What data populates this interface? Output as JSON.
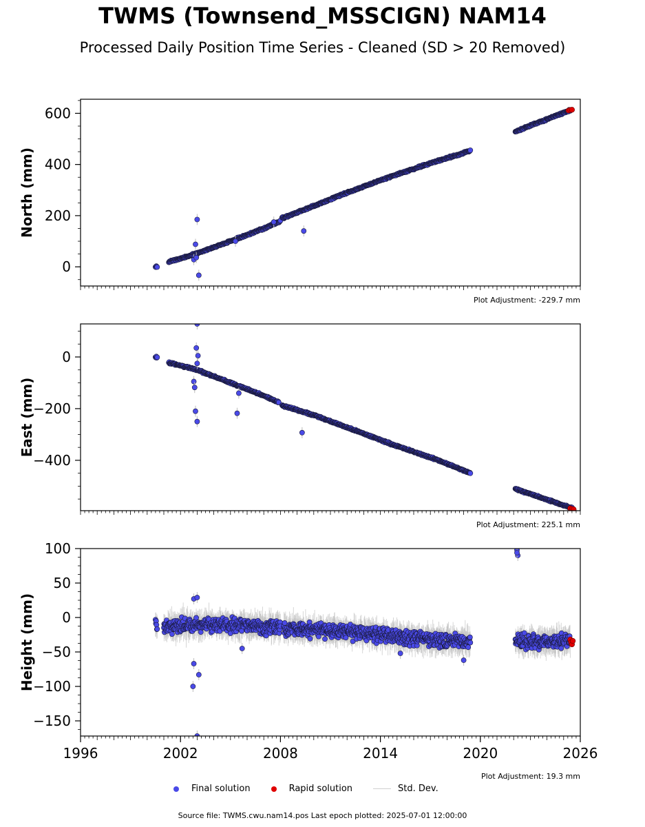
{
  "title": "TWMS (Townsend_MSSCIGN) NAM14",
  "subtitle": "Processed Daily Position Time Series - Cleaned (SD > 20 Removed)",
  "legend": {
    "final": "Final solution",
    "rapid": "Rapid solution",
    "sd": "Std. Dev."
  },
  "footer": "Source file: TWMS.cwu.nam14.pos  Last epoch plotted: 2025-07-01 12:00:00",
  "colors": {
    "final": "#4a4ae8",
    "rapid": "#e00000",
    "sd": "#bbbbbb",
    "edge": "#1a1a3a"
  },
  "chart_data": [
    {
      "type": "scatter",
      "ylabel": "North (mm)",
      "xlim": [
        1996,
        2026
      ],
      "ylim": [
        -75,
        655
      ],
      "yticks": [
        0,
        200,
        400,
        600
      ],
      "adjustment": "Plot Adjustment: -229.7 mm",
      "show_xticklabels": false,
      "series": [
        {
          "name": "Final solution",
          "segments": [
            {
              "x": [
                2000.5,
                2000.6
              ],
              "y": [
                0,
                1
              ]
            },
            {
              "x": [
                2001.3,
                2002.3,
                2003.3,
                2005.0,
                2007.0,
                2008.0
              ],
              "y": [
                20,
                38,
                60,
                100,
                150,
                178
              ]
            },
            {
              "x": [
                2008.1,
                2009.5,
                2012.0,
                2014.5,
                2017.0,
                2019.4
              ],
              "y": [
                190,
                225,
                290,
                350,
                405,
                453
              ]
            },
            {
              "x": [
                2022.1,
                2023.5,
                2025.4
              ],
              "y": [
                528,
                565,
                612
              ]
            }
          ],
          "outliers": [
            [
              2003.0,
              185
            ],
            [
              2003.1,
              -33
            ],
            [
              2002.9,
              88
            ],
            [
              2002.8,
              28
            ],
            [
              2002.95,
              36
            ],
            [
              2005.3,
              100
            ],
            [
              2009.4,
              140
            ],
            [
              2007.6,
              175
            ]
          ]
        },
        {
          "name": "Rapid solution",
          "x": [
            2025.3,
            2025.4,
            2025.5
          ],
          "y": [
            611,
            613,
            614
          ]
        }
      ]
    },
    {
      "type": "scatter",
      "ylabel": "East (mm)",
      "xlim": [
        1996,
        2026
      ],
      "ylim": [
        -595,
        128
      ],
      "yticks": [
        0,
        -200,
        -400
      ],
      "adjustment": "Plot Adjustment: 225.1 mm",
      "show_xticklabels": false,
      "series": [
        {
          "name": "Final solution",
          "segments": [
            {
              "x": [
                2000.5,
                2000.6
              ],
              "y": [
                0,
                -2
              ]
            },
            {
              "x": [
                2001.3,
                2003.0,
                2005.0,
                2007.0,
                2007.9
              ],
              "y": [
                -22,
                -50,
                -100,
                -150,
                -175
              ]
            },
            {
              "x": [
                2008.1,
                2010.0,
                2012.5,
                2015.0,
                2017.5,
                2019.4
              ],
              "y": [
                -188,
                -225,
                -285,
                -345,
                -400,
                -450
              ]
            },
            {
              "x": [
                2022.1,
                2023.8,
                2025.5
              ],
              "y": [
                -510,
                -548,
                -585
              ]
            }
          ],
          "outliers": [
            [
              2003.0,
              128
            ],
            [
              2002.95,
              35
            ],
            [
              2003.05,
              5
            ],
            [
              2003.0,
              -25
            ],
            [
              2002.8,
              -95
            ],
            [
              2002.85,
              -118
            ],
            [
              2002.9,
              -210
            ],
            [
              2003.0,
              -250
            ],
            [
              2005.4,
              -218
            ],
            [
              2005.5,
              -140
            ],
            [
              2009.3,
              -293
            ]
          ]
        },
        {
          "name": "Rapid solution",
          "x": [
            2025.4,
            2025.5,
            2025.6
          ],
          "y": [
            -586,
            -588,
            -590
          ]
        }
      ]
    },
    {
      "type": "scatter",
      "ylabel": "Height (mm)",
      "xlim": [
        1996,
        2026
      ],
      "ylim": [
        -172,
        100
      ],
      "yticks": [
        100,
        50,
        0,
        -50,
        -100,
        -150
      ],
      "adjustment": "Plot Adjustment: 19.3 mm",
      "show_xticklabels": true,
      "xticks": [
        1996,
        2002,
        2008,
        2014,
        2020,
        2026
      ],
      "series": [
        {
          "name": "Final solution",
          "segments": [
            {
              "x": [
                2000.5,
                2000.6
              ],
              "y": [
                -8,
                -12
              ]
            },
            {
              "x": [
                2001.0,
                2004.0,
                2007.0,
                2008.0
              ],
              "y": [
                -12,
                -10,
                -13,
                -15
              ]
            },
            {
              "x": [
                2008.2,
                2011.0,
                2013.0,
                2015.0,
                2017.0,
                2019.4
              ],
              "y": [
                -15,
                -20,
                -22,
                -28,
                -32,
                -35
              ]
            },
            {
              "x": [
                2022.1,
                2023.5,
                2025.4
              ],
              "y": [
                -35,
                -35,
                -33
              ]
            }
          ],
          "outliers": [
            [
              2002.8,
              -67
            ],
            [
              2002.75,
              -100
            ],
            [
              2003.1,
              -83
            ],
            [
              2003.0,
              -172
            ],
            [
              2002.8,
              27
            ],
            [
              2003.0,
              29
            ],
            [
              2022.2,
              98
            ],
            [
              2022.25,
              90
            ],
            [
              2022.2,
              94
            ],
            [
              2005.7,
              -45
            ],
            [
              2015.2,
              -52
            ],
            [
              2019.0,
              -62
            ]
          ]
        },
        {
          "name": "Rapid solution",
          "x": [
            2025.4,
            2025.45,
            2025.5,
            2025.55
          ],
          "y": [
            -32,
            -36,
            -39,
            -34
          ]
        }
      ]
    }
  ]
}
